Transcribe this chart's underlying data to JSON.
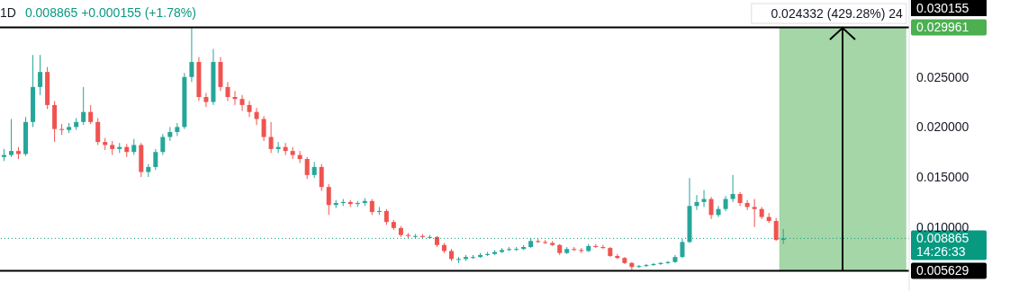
{
  "chart_data": {
    "type": "candlestick",
    "title": "1D",
    "subtitle": "0.008865 +0.000155 (+1.78%)",
    "categories": [
      null,
      null,
      null,
      null,
      null,
      null,
      null,
      null,
      null,
      null,
      null,
      null,
      null,
      null,
      null,
      null,
      null,
      null,
      null,
      null,
      null,
      null,
      null,
      null,
      null,
      null,
      null,
      null,
      null,
      null,
      null,
      null,
      null,
      null,
      null,
      null,
      null,
      null,
      null,
      null,
      null,
      null,
      null,
      null,
      null,
      null,
      null,
      null,
      null,
      null,
      null,
      null,
      null,
      null,
      null,
      null,
      null,
      null,
      null,
      null,
      null,
      null,
      null,
      null,
      null,
      null,
      null,
      null,
      null,
      null,
      null,
      null,
      null,
      null,
      null,
      null,
      null,
      null,
      null,
      null,
      null,
      null,
      null,
      null,
      null,
      null,
      null,
      null,
      null,
      null,
      null,
      null,
      null,
      null,
      null,
      null,
      null,
      null,
      null,
      null,
      null,
      null,
      null,
      null,
      null,
      null,
      null,
      null,
      null,
      null,
      null,
      null,
      null,
      null,
      null,
      null,
      null,
      null,
      null,
      null,
      null,
      null,
      null,
      null,
      null,
      null
    ],
    "ohlc": [
      [
        0.017,
        0.0178,
        0.0166,
        0.0172
      ],
      [
        0.0172,
        0.0208,
        0.017,
        0.0176
      ],
      [
        0.0176,
        0.018,
        0.0168,
        0.0173
      ],
      [
        0.0173,
        0.021,
        0.0171,
        0.0205
      ],
      [
        0.0205,
        0.0272,
        0.02,
        0.024
      ],
      [
        0.024,
        0.0272,
        0.0232,
        0.0255
      ],
      [
        0.0255,
        0.026,
        0.0218,
        0.0222
      ],
      [
        0.0222,
        0.0226,
        0.0185,
        0.0198
      ],
      [
        0.0198,
        0.0203,
        0.0192,
        0.0197
      ],
      [
        0.0197,
        0.0204,
        0.0194,
        0.02
      ],
      [
        0.02,
        0.0209,
        0.0197,
        0.0205
      ],
      [
        0.0205,
        0.024,
        0.0202,
        0.0215
      ],
      [
        0.0215,
        0.0222,
        0.0203,
        0.0205
      ],
      [
        0.0205,
        0.0209,
        0.0182,
        0.0185
      ],
      [
        0.0185,
        0.0189,
        0.0177,
        0.0182
      ],
      [
        0.0182,
        0.0186,
        0.0172,
        0.0178
      ],
      [
        0.0178,
        0.0184,
        0.0174,
        0.018
      ],
      [
        0.018,
        0.0183,
        0.017,
        0.0175
      ],
      [
        0.0175,
        0.0188,
        0.0172,
        0.0182
      ],
      [
        0.0182,
        0.0184,
        0.015,
        0.0155
      ],
      [
        0.0155,
        0.0163,
        0.015,
        0.016
      ],
      [
        0.016,
        0.0178,
        0.0157,
        0.0175
      ],
      [
        0.0175,
        0.0193,
        0.0172,
        0.019
      ],
      [
        0.019,
        0.02,
        0.0186,
        0.0195
      ],
      [
        0.0195,
        0.0204,
        0.0191,
        0.02
      ],
      [
        0.02,
        0.0254,
        0.0198,
        0.025
      ],
      [
        0.025,
        0.02996,
        0.0245,
        0.0265
      ],
      [
        0.0265,
        0.027,
        0.0226,
        0.023
      ],
      [
        0.023,
        0.0234,
        0.022,
        0.0225
      ],
      [
        0.0225,
        0.0278,
        0.0222,
        0.0265
      ],
      [
        0.0265,
        0.027,
        0.0236,
        0.024
      ],
      [
        0.024,
        0.0245,
        0.0226,
        0.023
      ],
      [
        0.023,
        0.0236,
        0.0222,
        0.0228
      ],
      [
        0.0228,
        0.0232,
        0.0216,
        0.0222
      ],
      [
        0.0222,
        0.0226,
        0.021,
        0.0215
      ],
      [
        0.0215,
        0.0219,
        0.0202,
        0.0208
      ],
      [
        0.0208,
        0.0211,
        0.0186,
        0.019
      ],
      [
        0.019,
        0.0205,
        0.0174,
        0.0178
      ],
      [
        0.0178,
        0.0185,
        0.0174,
        0.018
      ],
      [
        0.018,
        0.0184,
        0.0172,
        0.0176
      ],
      [
        0.0176,
        0.018,
        0.0168,
        0.0172
      ],
      [
        0.0172,
        0.0176,
        0.0164,
        0.0168
      ],
      [
        0.0168,
        0.017,
        0.0148,
        0.0152
      ],
      [
        0.0152,
        0.0165,
        0.0149,
        0.016
      ],
      [
        0.016,
        0.0163,
        0.0136,
        0.014
      ],
      [
        0.014,
        0.0143,
        0.0112,
        0.0122
      ],
      [
        0.0122,
        0.0127,
        0.0119,
        0.0124
      ],
      [
        0.0124,
        0.0128,
        0.0121,
        0.0125
      ],
      [
        0.0125,
        0.0127,
        0.012,
        0.0123
      ],
      [
        0.0123,
        0.0126,
        0.012,
        0.0124
      ],
      [
        0.0124,
        0.0129,
        0.0121,
        0.0126
      ],
      [
        0.0126,
        0.0128,
        0.0112,
        0.0115
      ],
      [
        0.0115,
        0.012,
        0.0112,
        0.0116
      ],
      [
        0.0116,
        0.0118,
        0.0102,
        0.0105
      ],
      [
        0.0105,
        0.0107,
        0.0097,
        0.0099
      ],
      [
        0.0099,
        0.0101,
        0.009,
        0.0092
      ],
      [
        0.0092,
        0.0094,
        0.0089,
        0.0091
      ],
      [
        0.0091,
        0.0093,
        0.0089,
        0.0091
      ],
      [
        0.0091,
        0.0093,
        0.0088,
        0.009
      ],
      [
        0.009,
        0.0092,
        0.0088,
        0.009
      ],
      [
        0.009,
        0.0091,
        0.008,
        0.0082
      ],
      [
        0.0082,
        0.0084,
        0.0074,
        0.0076
      ],
      [
        0.0076,
        0.0078,
        0.0066,
        0.0068
      ],
      [
        0.0068,
        0.007,
        0.0064,
        0.0068
      ],
      [
        0.0068,
        0.0072,
        0.0066,
        0.007
      ],
      [
        0.007,
        0.0072,
        0.0068,
        0.007
      ],
      [
        0.007,
        0.0074,
        0.0069,
        0.0072
      ],
      [
        0.0072,
        0.0075,
        0.0071,
        0.0073
      ],
      [
        0.0073,
        0.0077,
        0.0072,
        0.0075
      ],
      [
        0.0075,
        0.0079,
        0.0074,
        0.0077
      ],
      [
        0.0077,
        0.008,
        0.0076,
        0.0078
      ],
      [
        0.0078,
        0.008,
        0.0076,
        0.0078
      ],
      [
        0.0078,
        0.0082,
        0.0077,
        0.008
      ],
      [
        0.008,
        0.0089,
        0.0079,
        0.0086
      ],
      [
        0.0086,
        0.0088,
        0.0084,
        0.0085
      ],
      [
        0.0085,
        0.0087,
        0.0083,
        0.0084
      ],
      [
        0.0084,
        0.0086,
        0.0081,
        0.0082
      ],
      [
        0.0082,
        0.0083,
        0.0072,
        0.0074
      ],
      [
        0.0074,
        0.008,
        0.0073,
        0.0078
      ],
      [
        0.0078,
        0.008,
        0.0076,
        0.0077
      ],
      [
        0.0077,
        0.0079,
        0.0074,
        0.0076
      ],
      [
        0.0076,
        0.0083,
        0.0075,
        0.0081
      ],
      [
        0.0081,
        0.0083,
        0.0079,
        0.008
      ],
      [
        0.008,
        0.0082,
        0.0078,
        0.0079
      ],
      [
        0.0079,
        0.008,
        0.007,
        0.0071
      ],
      [
        0.0071,
        0.0073,
        0.0068,
        0.0069
      ],
      [
        0.0069,
        0.007,
        0.0063,
        0.0064
      ],
      [
        0.0064,
        0.0065,
        0.0057,
        0.006
      ],
      [
        0.006,
        0.0062,
        0.0059,
        0.0061
      ],
      [
        0.0061,
        0.0063,
        0.006,
        0.0062
      ],
      [
        0.0062,
        0.0064,
        0.0061,
        0.0063
      ],
      [
        0.0063,
        0.0065,
        0.0062,
        0.0064
      ],
      [
        0.0064,
        0.0066,
        0.0063,
        0.0065
      ],
      [
        0.0065,
        0.0072,
        0.0064,
        0.007
      ],
      [
        0.007,
        0.0088,
        0.0069,
        0.0085
      ],
      [
        0.0085,
        0.0149,
        0.0084,
        0.0121
      ],
      [
        0.0121,
        0.0132,
        0.0117,
        0.0125
      ],
      [
        0.0125,
        0.0137,
        0.012,
        0.0128
      ],
      [
        0.0128,
        0.013,
        0.0108,
        0.0112
      ],
      [
        0.0112,
        0.0121,
        0.011,
        0.0118
      ],
      [
        0.0118,
        0.0131,
        0.0116,
        0.0128
      ],
      [
        0.0128,
        0.0152,
        0.0125,
        0.0133
      ],
      [
        0.0133,
        0.0135,
        0.0121,
        0.0124
      ],
      [
        0.0124,
        0.0127,
        0.0117,
        0.012
      ],
      [
        0.012,
        0.0128,
        0.01,
        0.0118
      ],
      [
        0.0118,
        0.012,
        0.0108,
        0.011
      ],
      [
        0.011,
        0.0114,
        0.0104,
        0.0106
      ],
      [
        0.0106,
        0.0109,
        0.0086,
        0.00871
      ],
      [
        0.00871,
        0.0098,
        0.0083,
        0.008865
      ],
      null,
      null,
      null,
      null,
      null,
      null,
      null,
      null,
      null,
      null,
      null,
      null,
      null,
      null,
      null,
      null,
      null
    ],
    "colors": [
      "#26a69a",
      "#26a69a",
      "#ef5350",
      "#26a69a",
      "#26a69a",
      "#26a69a",
      "#ef5350",
      "#ef5350",
      "#ef5350",
      "#26a69a",
      "#26a69a",
      "#26a69a",
      "#ef5350",
      "#ef5350",
      "#ef5350",
      "#ef5350",
      "#26a69a",
      "#ef5350",
      "#26a69a",
      "#ef5350",
      "#26a69a",
      "#26a69a",
      "#26a69a",
      "#26a69a",
      "#26a69a",
      "#26a69a",
      "#26a69a",
      "#ef5350",
      "#ef5350",
      "#26a69a",
      "#ef5350",
      "#ef5350",
      "#ef5350",
      "#ef5350",
      "#ef5350",
      "#ef5350",
      "#ef5350",
      "#ef5350",
      "#26a69a",
      "#ef5350",
      "#ef5350",
      "#ef5350",
      "#ef5350",
      "#26a69a",
      "#ef5350",
      "#ef5350",
      "#26a69a",
      "#26a69a",
      "#ef5350",
      "#26a69a",
      "#26a69a",
      "#ef5350",
      "#26a69a",
      "#ef5350",
      "#ef5350",
      "#ef5350",
      "#ef5350",
      "#26a69a",
      "#ef5350",
      "#26a69a",
      "#ef5350",
      "#ef5350",
      "#ef5350",
      "#26a69a",
      "#26a69a",
      "#26a69a",
      "#26a69a",
      "#26a69a",
      "#26a69a",
      "#26a69a",
      "#26a69a",
      "#26a69a",
      "#26a69a",
      "#26a69a",
      "#ef5350",
      "#ef5350",
      "#ef5350",
      "#ef5350",
      "#26a69a",
      "#ef5350",
      "#ef5350",
      "#26a69a",
      "#ef5350",
      "#ef5350",
      "#ef5350",
      "#ef5350",
      "#ef5350",
      "#ef5350",
      "#26a69a",
      "#26a69a",
      "#26a69a",
      "#26a69a",
      "#26a69a",
      "#26a69a",
      "#26a69a",
      "#26a69a",
      "#26a69a",
      "#26a69a",
      "#ef5350",
      "#26a69a",
      "#26a69a",
      "#26a69a",
      "#ef5350",
      "#ef5350",
      "#ef5350",
      "#ef5350",
      "#ef5350",
      "#ef5350",
      "#26a69a",
      null,
      null,
      null,
      null,
      null,
      null,
      null,
      null,
      null,
      null,
      null,
      null,
      null,
      null,
      null,
      null,
      null
    ],
    "ylim": [
      0.0036,
      0.0327
    ],
    "yticks": [
      {
        "value": 0.01,
        "label": "0.010000"
      },
      {
        "value": 0.015,
        "label": "0.015000"
      },
      {
        "value": 0.02,
        "label": "0.020000"
      },
      {
        "value": 0.025,
        "label": "0.025000"
      }
    ],
    "tick_labels": "y",
    "grid": false,
    "ref_lines": [
      {
        "axis": "y",
        "value": 0.029961,
        "label": "0.029961",
        "color": "#000000",
        "line_style": "solid"
      },
      {
        "axis": "y",
        "value": 0.005629,
        "label": "0.005629",
        "color": "#000000",
        "line_style": "solid"
      },
      {
        "axis": "y",
        "value": 0.008865,
        "label": "0.008865",
        "color": "#089981",
        "line_style": "dotted"
      }
    ],
    "bands": [
      {
        "axis": "y",
        "from": 0.005629,
        "to": 0.029961,
        "label": "0.024332 (429.28%) 24",
        "color": "#a5d6a7"
      }
    ],
    "annotations": [
      "0.030155",
      "14:26:33"
    ]
  }
}
